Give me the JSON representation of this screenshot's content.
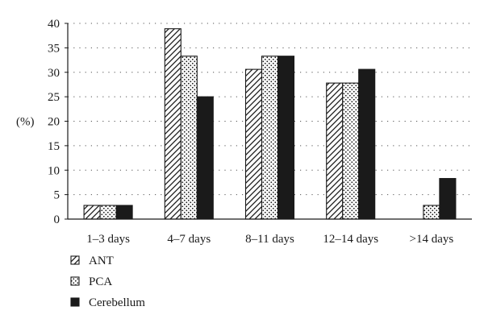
{
  "chart_data": {
    "type": "bar",
    "title": "",
    "xlabel": "",
    "ylabel": "(%)",
    "ylim": [
      0,
      40
    ],
    "yticks": [
      0,
      5,
      10,
      15,
      20,
      25,
      30,
      35,
      40
    ],
    "grid": "horizontal-dotted",
    "legend_position": "bottom-left",
    "categories": [
      "1–3 days",
      "4–7 days",
      "8–11 days",
      "12–14 days",
      ">14 days"
    ],
    "series": [
      {
        "name": "ANT",
        "pattern": "diagonal-hatch",
        "values": [
          2.8,
          38.9,
          30.6,
          27.8,
          0
        ]
      },
      {
        "name": "PCA",
        "pattern": "dotted",
        "values": [
          2.8,
          33.3,
          33.3,
          27.8,
          2.8
        ]
      },
      {
        "name": "Cerebellum",
        "pattern": "solid-black",
        "values": [
          2.8,
          25.0,
          33.3,
          30.6,
          8.3
        ]
      }
    ]
  }
}
